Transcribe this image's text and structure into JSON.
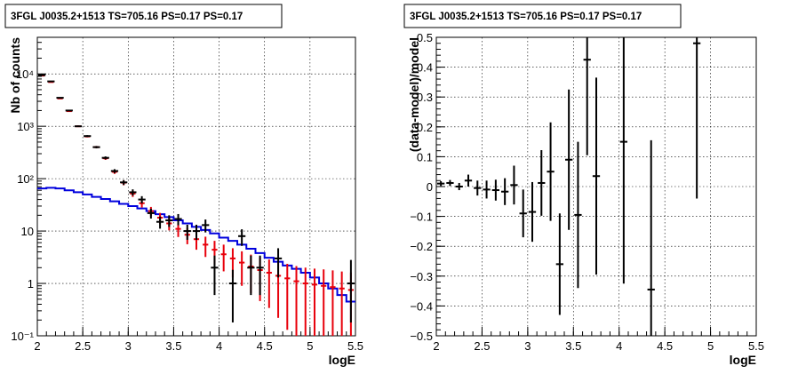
{
  "chart_data": [
    {
      "type": "scatter",
      "title": "3FGL J0035.2+1513 TS=705.16 PS=0.17 PS=0.17",
      "xlabel": "logE",
      "ylabel": "Nb of counts",
      "xlim": [
        2,
        5.5
      ],
      "ylim": [
        0.1,
        50000
      ],
      "yscale": "log",
      "grid": true,
      "xticks": [
        2,
        2.5,
        3,
        3.5,
        4,
        4.5,
        5,
        5.5
      ],
      "xtick_labels": [
        "2",
        "2.5",
        "3",
        "3.5",
        "4",
        "4.5",
        "5",
        "5.5"
      ],
      "yticks": [
        0.1,
        1,
        10,
        100,
        1000,
        10000
      ],
      "ytick_labels": [
        "10⁻¹",
        "1",
        "10",
        "10²",
        "10³",
        "10⁴"
      ],
      "series": [
        {
          "kind": "data_points",
          "color": "#000000",
          "x": [
            2.05,
            2.15,
            2.25,
            2.35,
            2.45,
            2.55,
            2.65,
            2.75,
            2.85,
            2.95,
            3.05,
            3.15,
            3.25,
            3.35,
            3.45,
            3.55,
            3.65,
            3.75,
            3.85,
            3.95,
            4.05,
            4.15,
            4.25,
            4.35,
            4.45,
            4.55,
            4.65,
            4.75,
            4.85,
            4.95,
            5.05,
            5.15,
            5.25,
            5.35,
            5.45
          ],
          "y": [
            9500,
            7200,
            3500,
            2000,
            1000,
            650,
            400,
            250,
            140,
            85,
            55,
            40,
            22,
            15,
            16,
            17,
            10,
            10,
            13,
            2,
            null,
            1,
            8,
            2,
            2,
            null,
            3,
            null,
            null,
            null,
            null,
            null,
            null,
            null,
            1
          ],
          "yerr": [
            100,
            85,
            60,
            45,
            32,
            25,
            20,
            16,
            12,
            9,
            7.5,
            6.3,
            4.7,
            3.9,
            4,
            4.1,
            3.2,
            3.2,
            3.6,
            1.4,
            null,
            0.82,
            2.8,
            1.4,
            1.4,
            null,
            1.7,
            null,
            null,
            null,
            null,
            null,
            null,
            null,
            0.82
          ],
          "yerr_up": [
            null,
            null,
            null,
            null,
            null,
            null,
            null,
            null,
            null,
            null,
            null,
            null,
            null,
            null,
            null,
            null,
            null,
            null,
            null,
            null,
            null,
            null,
            null,
            null,
            null,
            null,
            null,
            null,
            null,
            null,
            null,
            null,
            null,
            null,
            1.8
          ]
        },
        {
          "kind": "model_total",
          "color": "#e8000b",
          "x": [
            2.05,
            2.15,
            2.25,
            2.35,
            2.45,
            2.55,
            2.65,
            2.75,
            2.85,
            2.95,
            3.05,
            3.15,
            3.25,
            3.35,
            3.45,
            3.55,
            3.65,
            3.75,
            3.85,
            3.95,
            4.05,
            4.15,
            4.25,
            4.35,
            4.45,
            4.55,
            4.65,
            4.75,
            4.85,
            4.95,
            5.05,
            5.15,
            5.25,
            5.35,
            5.45
          ],
          "y": [
            9300,
            7000,
            3400,
            1950,
            1000,
            640,
            400,
            245,
            135,
            84,
            52,
            34,
            24,
            18,
            14,
            11,
            8.5,
            7,
            5.5,
            4.4,
            3.6,
            3.0,
            2.5,
            2.1,
            1.8,
            1.6,
            1.4,
            1.25,
            1.1,
            1.0,
            0.95,
            0.9,
            0.85,
            0.8,
            0.75
          ],
          "yerr": [
            96,
            84,
            58,
            44,
            32,
            25,
            20,
            16,
            11.6,
            9.2,
            7.2,
            5.8,
            4.9,
            4.2,
            3.7,
            3.3,
            2.9,
            2.6,
            2.3,
            2.1,
            1.9,
            1.7,
            1.6,
            1.45,
            1.34,
            1.26,
            1.18,
            1.12,
            1.05,
            1.0,
            0.97,
            0.95,
            0.92,
            0.89,
            0.87
          ]
        },
        {
          "kind": "model_background",
          "color": "#0000dd",
          "x": [
            2.05,
            2.15,
            2.25,
            2.35,
            2.45,
            2.55,
            2.65,
            2.75,
            2.85,
            2.95,
            3.05,
            3.15,
            3.25,
            3.35,
            3.45,
            3.55,
            3.65,
            3.75,
            3.85,
            3.95,
            4.05,
            4.15,
            4.25,
            4.35,
            4.45,
            4.55,
            4.65,
            4.75,
            4.85,
            4.95,
            5.05,
            5.15,
            5.25,
            5.35,
            5.45
          ],
          "y": [
            65,
            67,
            65,
            60,
            55,
            50,
            45,
            41,
            37,
            33,
            30,
            27,
            24,
            21,
            18.5,
            16,
            14,
            12,
            10.5,
            9,
            7.5,
            6.5,
            5.5,
            4.6,
            3.8,
            3.1,
            2.6,
            2.2,
            1.9,
            1.6,
            1.3,
            1.0,
            0.8,
            0.6,
            0.45
          ]
        }
      ]
    },
    {
      "type": "scatter",
      "title": "3FGL J0035.2+1513 TS=705.16 PS=0.17 PS=0.17",
      "xlabel": "logE",
      "ylabel": "(data-model)/model",
      "xlim": [
        2,
        5.5
      ],
      "ylim": [
        -0.5,
        0.5
      ],
      "grid": true,
      "xticks": [
        2,
        2.5,
        3,
        3.5,
        4,
        4.5,
        5,
        5.5
      ],
      "xtick_labels": [
        "2",
        "2.5",
        "3",
        "3.5",
        "4",
        "4.5",
        "5",
        "5.5"
      ],
      "yticks": [
        -0.5,
        -0.4,
        -0.3,
        -0.2,
        -0.1,
        0,
        0.1,
        0.2,
        0.3,
        0.4,
        0.5
      ],
      "ytick_labels": [
        "−0.5",
        "−0.4",
        "−0.3",
        "−0.2",
        "−0.1",
        "0",
        "0.1",
        "0.2",
        "0.3",
        "0.4",
        "0.5"
      ],
      "series": [
        {
          "kind": "residuals",
          "color": "#000000",
          "x": [
            2.05,
            2.15,
            2.25,
            2.35,
            2.45,
            2.55,
            2.65,
            2.75,
            2.85,
            2.95,
            3.05,
            3.15,
            3.25,
            3.35,
            3.45,
            3.55,
            3.65,
            3.75,
            4.05,
            4.35,
            4.85
          ],
          "y": [
            0.01,
            0.012,
            0.0,
            0.02,
            -0.005,
            -0.01,
            -0.012,
            -0.017,
            0.005,
            -0.09,
            -0.085,
            0.012,
            0.05,
            -0.26,
            0.09,
            -0.095,
            0.425,
            0.035,
            0.15,
            -0.345,
            0.48
          ],
          "yerr": [
            0.008,
            0.01,
            0.012,
            0.02,
            0.025,
            0.03,
            0.035,
            0.045,
            0.065,
            0.08,
            0.1,
            0.11,
            0.165,
            0.17,
            0.235,
            0.245,
            0.32,
            0.33,
            0.475,
            0.5,
            0.52
          ]
        }
      ]
    }
  ]
}
